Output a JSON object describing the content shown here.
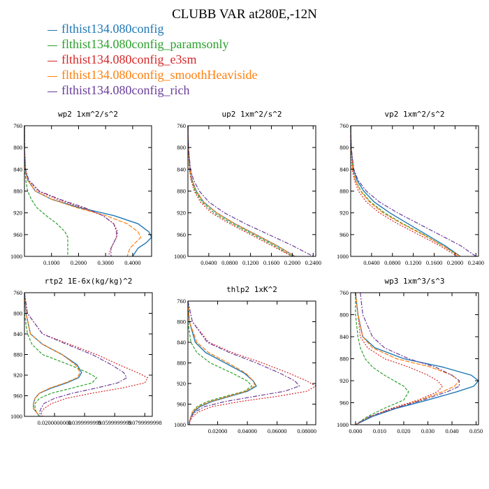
{
  "title": "CLUBB VAR at280E,-12N",
  "legend": [
    {
      "label": "flthist134.080config",
      "color": "#1f77b4"
    },
    {
      "label": "flthist134.080config_paramsonly",
      "color": "#2ca02c"
    },
    {
      "label": "flthist134.080config_e3sm",
      "color": "#d62728"
    },
    {
      "label": "flthist134.080config_smoothHeaviside",
      "color": "#ff7f0e"
    },
    {
      "label": "flthist134.080config_rich",
      "color": "#6a3d9a"
    }
  ],
  "chart_data": [
    {
      "type": "line",
      "title": "wp2  1xm^2/s^2",
      "xlim": [
        0,
        0.47
      ],
      "ylim": [
        760,
        1000
      ],
      "xticks": [
        0.1,
        0.2,
        0.3,
        0.4
      ],
      "xtick_labels": [
        "0.1000",
        "0.2000",
        "0.3000",
        "0.4000"
      ],
      "yticks": [
        760,
        800,
        840,
        880,
        920,
        960,
        1000
      ],
      "ytick_labels": [
        "760",
        "800",
        "840",
        "880",
        "920",
        "960",
        "1000"
      ],
      "y": [
        760,
        800,
        840,
        860,
        880,
        895,
        910,
        925,
        940,
        955,
        965,
        975,
        985,
        1000
      ],
      "series": [
        {
          "name": "flthist134.080config",
          "values": [
            0,
            0,
            0.003,
            0.012,
            0.04,
            0.1,
            0.2,
            0.33,
            0.42,
            0.46,
            0.47,
            0.45,
            0.42,
            0.4
          ]
        },
        {
          "name": "flthist134.080config_paramsonly",
          "values": [
            0,
            0,
            0.002,
            0.005,
            0.012,
            0.025,
            0.045,
            0.08,
            0.12,
            0.15,
            0.16,
            0.16,
            0.16,
            0.16
          ]
        },
        {
          "name": "flthist134.080config_e3sm",
          "values": [
            0,
            0,
            0.004,
            0.015,
            0.05,
            0.12,
            0.21,
            0.29,
            0.33,
            0.345,
            0.34,
            0.33,
            0.32,
            0.31
          ]
        },
        {
          "name": "flthist134.080config_smoothHeaviside",
          "values": [
            0,
            0,
            0.003,
            0.012,
            0.04,
            0.1,
            0.19,
            0.3,
            0.38,
            0.42,
            0.43,
            0.41,
            0.39,
            0.38
          ]
        },
        {
          "name": "flthist134.080config_rich",
          "values": [
            0,
            0,
            0.004,
            0.016,
            0.055,
            0.13,
            0.22,
            0.29,
            0.33,
            0.34,
            0.34,
            0.33,
            0.32,
            0.32
          ]
        }
      ]
    },
    {
      "type": "line",
      "title": "up2  1xm^2/s^2",
      "xlim": [
        0,
        0.245
      ],
      "ylim": [
        760,
        1000
      ],
      "xticks": [
        0.04,
        0.08,
        0.12,
        0.16,
        0.2,
        0.24
      ],
      "xtick_labels": [
        "0.0400",
        "0.0800",
        "0.1200",
        "0.1600",
        "0.2000",
        "0.2400"
      ],
      "yticks": [
        760,
        800,
        840,
        880,
        920,
        960,
        1000
      ],
      "ytick_labels": [
        "760",
        "800",
        "840",
        "880",
        "920",
        "960",
        "1000"
      ],
      "y": [
        760,
        800,
        840,
        860,
        880,
        900,
        920,
        940,
        960,
        980,
        1000
      ],
      "series": [
        {
          "name": "flthist134.080config",
          "values": [
            0,
            0.001,
            0.004,
            0.008,
            0.016,
            0.03,
            0.055,
            0.09,
            0.13,
            0.17,
            0.205
          ]
        },
        {
          "name": "flthist134.080config_paramsonly",
          "values": [
            0,
            0.001,
            0.003,
            0.007,
            0.014,
            0.027,
            0.05,
            0.085,
            0.125,
            0.165,
            0.2
          ]
        },
        {
          "name": "flthist134.080config_e3sm",
          "values": [
            0,
            0.001,
            0.003,
            0.006,
            0.012,
            0.024,
            0.045,
            0.08,
            0.12,
            0.16,
            0.2
          ]
        },
        {
          "name": "flthist134.080config_smoothHeaviside",
          "values": [
            0,
            0.001,
            0.004,
            0.008,
            0.016,
            0.03,
            0.055,
            0.09,
            0.13,
            0.17,
            0.205
          ]
        },
        {
          "name": "flthist134.080config_rich",
          "values": [
            0,
            0.001,
            0.005,
            0.011,
            0.022,
            0.04,
            0.07,
            0.11,
            0.155,
            0.2,
            0.24
          ]
        }
      ]
    },
    {
      "type": "line",
      "title": "vp2  1xm^2/s^2",
      "xlim": [
        0,
        0.245
      ],
      "ylim": [
        760,
        1000
      ],
      "xticks": [
        0.04,
        0.08,
        0.12,
        0.16,
        0.2,
        0.24
      ],
      "xtick_labels": [
        "0.0400",
        "0.0800",
        "0.1200",
        "0.1600",
        "0.2000",
        "0.2400"
      ],
      "yticks": [
        760,
        800,
        840,
        880,
        920,
        960,
        1000
      ],
      "ytick_labels": [
        "760",
        "800",
        "840",
        "880",
        "920",
        "960",
        "1000"
      ],
      "y": [
        760,
        800,
        840,
        860,
        880,
        900,
        920,
        940,
        960,
        980,
        1000
      ],
      "series": [
        {
          "name": "flthist134.080config",
          "values": [
            0,
            0.001,
            0.005,
            0.012,
            0.025,
            0.045,
            0.075,
            0.11,
            0.145,
            0.18,
            0.21
          ]
        },
        {
          "name": "flthist134.080config_paramsonly",
          "values": [
            0,
            0.001,
            0.004,
            0.009,
            0.02,
            0.038,
            0.065,
            0.1,
            0.14,
            0.175,
            0.21
          ]
        },
        {
          "name": "flthist134.080config_e3sm",
          "values": [
            0,
            0.001,
            0.003,
            0.007,
            0.015,
            0.03,
            0.055,
            0.09,
            0.13,
            0.17,
            0.205
          ]
        },
        {
          "name": "flthist134.080config_smoothHeaviside",
          "values": [
            0,
            0.001,
            0.004,
            0.009,
            0.019,
            0.036,
            0.062,
            0.098,
            0.138,
            0.175,
            0.21
          ]
        },
        {
          "name": "flthist134.080config_rich",
          "values": [
            0,
            0.001,
            0.006,
            0.014,
            0.03,
            0.055,
            0.09,
            0.13,
            0.17,
            0.21,
            0.24
          ]
        }
      ]
    },
    {
      "type": "line",
      "title": "rtp2  1E-6x(kg/kg)^2",
      "xlim": [
        0,
        0.085
      ],
      "ylim": [
        760,
        1000
      ],
      "xticks": [
        0.02,
        0.04,
        0.06,
        0.08
      ],
      "xtick_labels": [
        "0.0200000000",
        "0.0399999999",
        "0.0599999999",
        "0.0799999998"
      ],
      "yticks": [
        760,
        800,
        840,
        880,
        920,
        960,
        1000
      ],
      "ytick_labels": [
        "760",
        "800",
        "840",
        "880",
        "920",
        "960",
        "1000"
      ],
      "y": [
        760,
        800,
        840,
        860,
        880,
        900,
        915,
        925,
        935,
        945,
        955,
        965,
        975,
        985,
        992,
        1000
      ],
      "series": [
        {
          "name": "flthist134.080config",
          "values": [
            0,
            0.001,
            0.004,
            0.012,
            0.025,
            0.035,
            0.038,
            0.036,
            0.028,
            0.018,
            0.01,
            0.007,
            0.006,
            0.006,
            0.008,
            0.01
          ]
        },
        {
          "name": "flthist134.080config_paramsonly",
          "values": [
            0,
            0,
            0.002,
            0.005,
            0.012,
            0.03,
            0.042,
            0.048,
            0.045,
            0.032,
            0.018,
            0.01,
            0.007,
            0.007,
            0.008,
            0.01
          ]
        },
        {
          "name": "flthist134.080config_e3sm",
          "values": [
            0,
            0.002,
            0.012,
            0.03,
            0.048,
            0.063,
            0.075,
            0.082,
            0.08,
            0.065,
            0.045,
            0.028,
            0.018,
            0.013,
            0.011,
            0.012
          ]
        },
        {
          "name": "flthist134.080config_smoothHeaviside",
          "values": [
            0,
            0.001,
            0.004,
            0.012,
            0.025,
            0.034,
            0.037,
            0.035,
            0.027,
            0.017,
            0.01,
            0.007,
            0.006,
            0.006,
            0.008,
            0.01
          ]
        },
        {
          "name": "flthist134.080config_rich",
          "values": [
            0,
            0.002,
            0.012,
            0.028,
            0.045,
            0.058,
            0.066,
            0.068,
            0.062,
            0.048,
            0.032,
            0.02,
            0.013,
            0.011,
            0.01,
            0.011
          ]
        }
      ]
    },
    {
      "type": "line",
      "title": "thlp2  1xK^2",
      "xlim": [
        0,
        0.086
      ],
      "ylim": [
        760,
        1000
      ],
      "xticks": [
        0.02,
        0.04,
        0.06,
        0.08
      ],
      "xtick_labels": [
        "0.02000",
        "0.04000",
        "0.06000",
        "0.08000"
      ],
      "yticks": [
        760,
        800,
        840,
        880,
        920,
        960,
        1000
      ],
      "ytick_labels": [
        "760",
        "800",
        "840",
        "880",
        "920",
        "960",
        "1000"
      ],
      "y": [
        760,
        800,
        840,
        860,
        880,
        900,
        915,
        925,
        935,
        945,
        955,
        965,
        975,
        985,
        995,
        1000
      ],
      "series": [
        {
          "name": "flthist134.080config",
          "values": [
            0,
            0.001,
            0.005,
            0.012,
            0.025,
            0.038,
            0.044,
            0.046,
            0.04,
            0.028,
            0.016,
            0.008,
            0.004,
            0.002,
            0.001,
            0.001
          ]
        },
        {
          "name": "flthist134.080config_paramsonly",
          "values": [
            0,
            0,
            0.002,
            0.006,
            0.015,
            0.03,
            0.04,
            0.043,
            0.038,
            0.025,
            0.013,
            0.006,
            0.003,
            0.002,
            0.001,
            0.001
          ]
        },
        {
          "name": "flthist134.080config_e3sm",
          "values": [
            0,
            0.003,
            0.014,
            0.03,
            0.05,
            0.068,
            0.08,
            0.086,
            0.08,
            0.06,
            0.035,
            0.016,
            0.007,
            0.003,
            0.001,
            0.001
          ]
        },
        {
          "name": "flthist134.080config_smoothHeaviside",
          "values": [
            0,
            0.001,
            0.006,
            0.014,
            0.027,
            0.039,
            0.044,
            0.045,
            0.039,
            0.027,
            0.015,
            0.007,
            0.003,
            0.002,
            0.001,
            0.001
          ]
        },
        {
          "name": "flthist134.080config_rich",
          "values": [
            0,
            0.003,
            0.013,
            0.028,
            0.046,
            0.062,
            0.072,
            0.075,
            0.065,
            0.045,
            0.025,
            0.011,
            0.005,
            0.002,
            0.001,
            0.001
          ]
        }
      ]
    },
    {
      "type": "line",
      "title": "wp3  1xm^3/s^3",
      "xlim": [
        -0.002,
        0.051
      ],
      "ylim": [
        760,
        1000
      ],
      "xticks": [
        0,
        0.01,
        0.02,
        0.03,
        0.04,
        0.05
      ],
      "xtick_labels": [
        "0.000",
        "0.010",
        "0.020",
        "0.030",
        "0.040",
        "0.050"
      ],
      "yticks": [
        760,
        800,
        840,
        880,
        920,
        960,
        1000
      ],
      "ytick_labels": [
        "760",
        "800",
        "840",
        "880",
        "920",
        "960",
        "1000"
      ],
      "y": [
        760,
        800,
        840,
        860,
        880,
        895,
        910,
        920,
        930,
        940,
        955,
        970,
        985,
        1000
      ],
      "series": [
        {
          "name": "flthist134.080config",
          "values": [
            0,
            0.001,
            0.003,
            0.008,
            0.02,
            0.036,
            0.048,
            0.051,
            0.049,
            0.042,
            0.03,
            0.017,
            0.007,
            0.0
          ]
        },
        {
          "name": "flthist134.080config_paramsonly",
          "values": [
            0,
            0,
            0.001,
            0.002,
            0.004,
            0.007,
            0.012,
            0.016,
            0.02,
            0.022,
            0.02,
            0.012,
            0.005,
            0.0
          ]
        },
        {
          "name": "flthist134.080config_e3sm",
          "values": [
            0,
            0.001,
            0.002,
            0.005,
            0.012,
            0.022,
            0.03,
            0.034,
            0.036,
            0.034,
            0.026,
            0.015,
            0.006,
            0.0
          ]
        },
        {
          "name": "flthist134.080config_smoothHeaviside",
          "values": [
            0,
            0.001,
            0.003,
            0.007,
            0.017,
            0.031,
            0.04,
            0.043,
            0.041,
            0.036,
            0.027,
            0.016,
            0.006,
            0.0
          ]
        },
        {
          "name": "flthist134.080config_rich",
          "values": [
            0.002,
            0.003,
            0.007,
            0.012,
            0.022,
            0.033,
            0.04,
            0.043,
            0.043,
            0.038,
            0.028,
            0.016,
            0.006,
            0.0
          ]
        }
      ]
    }
  ]
}
